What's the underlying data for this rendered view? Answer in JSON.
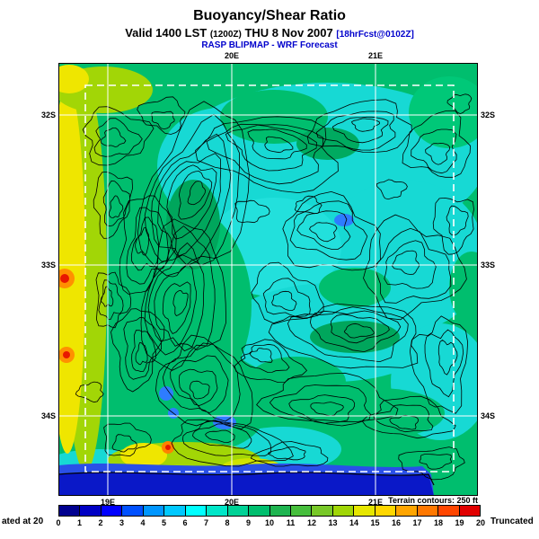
{
  "header": {
    "title": "Buoyancy/Shear Ratio",
    "valid_prefix": "Valid 1400 LST ",
    "valid_zulu": "(1200Z)",
    "valid_date": " THU 8 Nov 2007 ",
    "fcst_tag": "[18hrFcst@0102Z]",
    "model_line": "RASP BLIPMAP - WRF Forecast"
  },
  "map": {
    "lat_labels": [
      "32S",
      "33S",
      "34S"
    ],
    "lon_labels_top": [
      "20E",
      "21E"
    ],
    "lon_labels_bottom": [
      "19E",
      "20E",
      "21E"
    ]
  },
  "footer": {
    "left_text": "ated at 20",
    "right_text": "Truncated",
    "terrain_note": "Terrain contours: 250 ft"
  },
  "colorbar": {
    "ticks": [
      "0",
      "1",
      "2",
      "3",
      "4",
      "5",
      "6",
      "7",
      "8",
      "9",
      "10",
      "11",
      "12",
      "13",
      "14",
      "15",
      "16",
      "17",
      "18",
      "19",
      "20"
    ],
    "colors": [
      "#00008F",
      "#0000C4",
      "#0000FF",
      "#0050FF",
      "#0096FF",
      "#00C8FF",
      "#00FFFF",
      "#00E6C8",
      "#00D296",
      "#00BE6E",
      "#1EB450",
      "#46BE3C",
      "#78C828",
      "#A0D606",
      "#E6E600",
      "#FFD700",
      "#FFA500",
      "#FF7800",
      "#FF4600",
      "#E10000"
    ]
  },
  "colors": {
    "header_accent": "#0000CC",
    "land_green": "#00BE6E",
    "cyan_region": "#17D9D4",
    "ocean_blue": "#0A18C8",
    "coast_yellow": "#EFE600",
    "hot_spot_red": "#E81800"
  }
}
